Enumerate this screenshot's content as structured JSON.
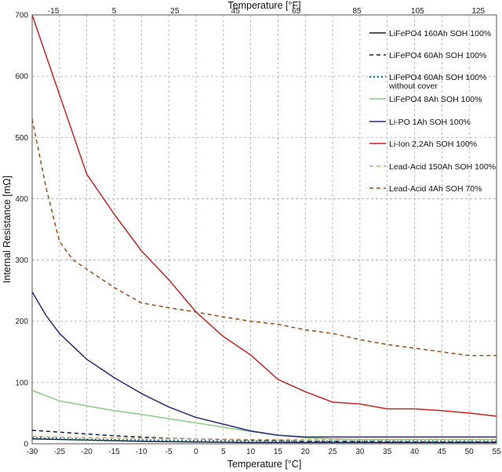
{
  "chart_data": {
    "type": "line",
    "xlabel": "Temperature  [°C]",
    "ylabel": "Internal Resistance  [mΩ]",
    "x2label": "Temperature  [°F]",
    "xlim": [
      -30,
      55
    ],
    "ylim": [
      0,
      700
    ],
    "xticks": [
      -30,
      -25,
      -20,
      -15,
      -10,
      -5,
      0,
      5,
      10,
      15,
      20,
      25,
      30,
      35,
      40,
      45,
      50,
      55
    ],
    "yticks": [
      0,
      100,
      200,
      300,
      400,
      500,
      600,
      700
    ],
    "x2ticks": [
      -15,
      5,
      25,
      45,
      65,
      85,
      105,
      125
    ],
    "grid": true,
    "legend_position": "top-right",
    "series": [
      {
        "name": "LiFePO4 160Ah   SOH 100%",
        "color": "#1a1a3a",
        "dash": "solid",
        "x": [
          -30,
          -20,
          -10,
          0,
          10,
          20,
          30,
          40,
          55
        ],
        "y": [
          8,
          6,
          4,
          3,
          2,
          2,
          2,
          2,
          2
        ]
      },
      {
        "name": "LiFePO4 60Ah   SOH 100%",
        "color": "#1a1a3a",
        "dash": "dashed",
        "x": [
          -30,
          -25,
          -20,
          -15,
          -10,
          -5,
          0,
          5,
          10,
          15,
          20,
          30,
          40,
          55
        ],
        "y": [
          22,
          19,
          16,
          13,
          11,
          9,
          8,
          7,
          6,
          5,
          4,
          4,
          3,
          3
        ]
      },
      {
        "name": "LiFePO4 60Ah   SOH 100%",
        "name2": "without cover",
        "color": "#1a8a8a",
        "dash": "dotted",
        "x": [
          -30,
          -20,
          -10,
          0,
          10,
          20,
          30,
          40,
          55
        ],
        "y": [
          10,
          7,
          6,
          5,
          4,
          4,
          4,
          4,
          4
        ]
      },
      {
        "name": "LiFePO4 8Ah   SOH 100%",
        "color": "#88cc88",
        "dash": "solid",
        "x": [
          -30,
          -25,
          -20,
          -15,
          -10,
          -5,
          0,
          5,
          10,
          15,
          20,
          25,
          30,
          40,
          55
        ],
        "y": [
          87,
          70,
          62,
          54,
          48,
          41,
          34,
          27,
          20,
          14,
          10,
          8,
          7,
          7,
          7
        ]
      },
      {
        "name": "Li-PO 1Ah   SOH 100%",
        "color": "#2a2a7a",
        "dash": "solid",
        "x": [
          -30,
          -27.5,
          -25,
          -20,
          -15,
          -10,
          -5,
          0,
          5,
          10,
          15,
          20,
          25,
          30,
          40,
          55
        ],
        "y": [
          248,
          210,
          180,
          138,
          108,
          82,
          60,
          43,
          32,
          21,
          14,
          11,
          11,
          11,
          11,
          11
        ]
      },
      {
        "name": "Li-Ion 2,2Ah   SOH 100%",
        "color": "#cc2222",
        "dash": "solid",
        "x": [
          -30,
          -25,
          -20,
          -15,
          -10,
          -5,
          0,
          5,
          10,
          15,
          20,
          25,
          30,
          35,
          40,
          45,
          50,
          55
        ],
        "y": [
          700,
          570,
          440,
          375,
          315,
          268,
          215,
          175,
          145,
          105,
          85,
          68,
          65,
          57,
          57,
          54,
          50,
          45
        ]
      },
      {
        "name": "Lead-Acid 150Ah   SOH 100%",
        "color": "#d4a070",
        "dash": "dashed",
        "x": [
          -30,
          -20,
          -10,
          0,
          10,
          20,
          30,
          40,
          55
        ],
        "y": [
          12,
          10,
          9,
          8,
          7,
          7,
          7,
          7,
          7
        ]
      },
      {
        "name": "Lead-Acid 4Ah   SOH 70%",
        "color": "#a04a10",
        "dash": "dashed",
        "x": [
          -30,
          -27.5,
          -25,
          -22.5,
          -20,
          -15,
          -10,
          -5,
          0,
          5,
          10,
          15,
          20,
          25,
          30,
          35,
          40,
          45,
          50,
          55
        ],
        "y": [
          530,
          420,
          330,
          300,
          285,
          255,
          230,
          222,
          215,
          207,
          200,
          195,
          186,
          180,
          170,
          162,
          156,
          150,
          144,
          144
        ]
      }
    ]
  }
}
